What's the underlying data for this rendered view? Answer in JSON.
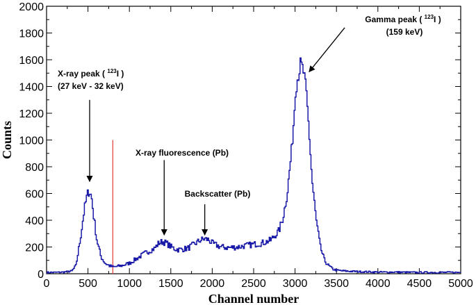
{
  "chart_data": {
    "type": "line",
    "xlabel": "Channel number",
    "ylabel": "Counts",
    "xlim": [
      0,
      5000
    ],
    "ylim": [
      0,
      2000
    ],
    "x_ticks": [
      0,
      500,
      1000,
      1500,
      2000,
      2500,
      3000,
      3500,
      4000,
      4500,
      5000
    ],
    "y_ticks": [
      0,
      200,
      400,
      600,
      800,
      1000,
      1200,
      1400,
      1600,
      1800,
      2000
    ],
    "grid": false,
    "line_color": "#1a1aa8",
    "marker_line": {
      "x": 800,
      "y_top": 1000,
      "color": "#e23b3b"
    },
    "series": [
      {
        "x": [
          0,
          100,
          200,
          300,
          350,
          400,
          450,
          480,
          500,
          520,
          540,
          560,
          600,
          650,
          700,
          750,
          800,
          900,
          1000,
          1100,
          1200,
          1300,
          1350,
          1400,
          1450,
          1500,
          1550,
          1600,
          1700,
          1800,
          1850,
          1900,
          1950,
          2000,
          2100,
          2200,
          2300,
          2400,
          2500,
          2600,
          2700,
          2800,
          2850,
          2900,
          2950,
          2980,
          3000,
          3030,
          3060,
          3080,
          3100,
          3130,
          3160,
          3200,
          3250,
          3300,
          3350,
          3400,
          3450,
          3500,
          3600,
          3800,
          4000,
          4200,
          4400,
          4600,
          4800,
          5000
        ],
        "y": [
          10,
          10,
          12,
          20,
          60,
          250,
          480,
          570,
          615,
          610,
          560,
          450,
          260,
          130,
          80,
          60,
          50,
          60,
          80,
          120,
          160,
          190,
          230,
          240,
          225,
          200,
          185,
          180,
          190,
          230,
          250,
          260,
          255,
          225,
          200,
          195,
          200,
          210,
          220,
          230,
          250,
          320,
          420,
          600,
          900,
          1150,
          1380,
          1480,
          1560,
          1540,
          1500,
          1350,
          1100,
          700,
          400,
          200,
          100,
          60,
          35,
          25,
          20,
          15,
          12,
          12,
          10,
          10,
          10,
          10
        ]
      }
    ],
    "annotations": [
      {
        "text_prefix": "X-ray peak (",
        "sup": "123",
        "text_suffix": "I )",
        "line2": "(27 keV - 32 keV)",
        "arrow_x": 520,
        "arrow_tip_y": 690,
        "arrow_tail_y": 1300
      },
      {
        "text": "X-ray fluorescence (Pb)",
        "arrow_x": 1420,
        "arrow_tip_y": 290,
        "arrow_tail_y": 850
      },
      {
        "text": "Backscatter (Pb)",
        "arrow_x": 1910,
        "arrow_tip_y": 290,
        "arrow_tail_y": 520
      },
      {
        "text_prefix": "Gamma peak (",
        "sup": "123",
        "text_suffix": "I )",
        "line2": "(159 keV)",
        "arrow_from": [
          3600,
          1840
        ],
        "arrow_to": [
          3170,
          1510
        ]
      }
    ]
  }
}
